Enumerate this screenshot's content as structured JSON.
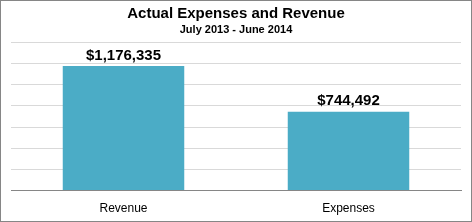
{
  "chart_data": {
    "type": "bar",
    "title": "Actual Expenses and Revenue",
    "subtitle": "July 2013 - June 2014",
    "categories": [
      "Revenue",
      "Expenses"
    ],
    "values": [
      1176335,
      744492
    ],
    "value_labels": [
      "$1,176,335",
      "$744,492"
    ],
    "data_labels": true,
    "color": "#4bacc6",
    "ylim": [
      0,
      1400000
    ],
    "yticks": [
      0,
      200000,
      400000,
      600000,
      800000,
      1000000,
      1200000,
      1400000
    ],
    "grid": true,
    "tick_labels": "x"
  }
}
